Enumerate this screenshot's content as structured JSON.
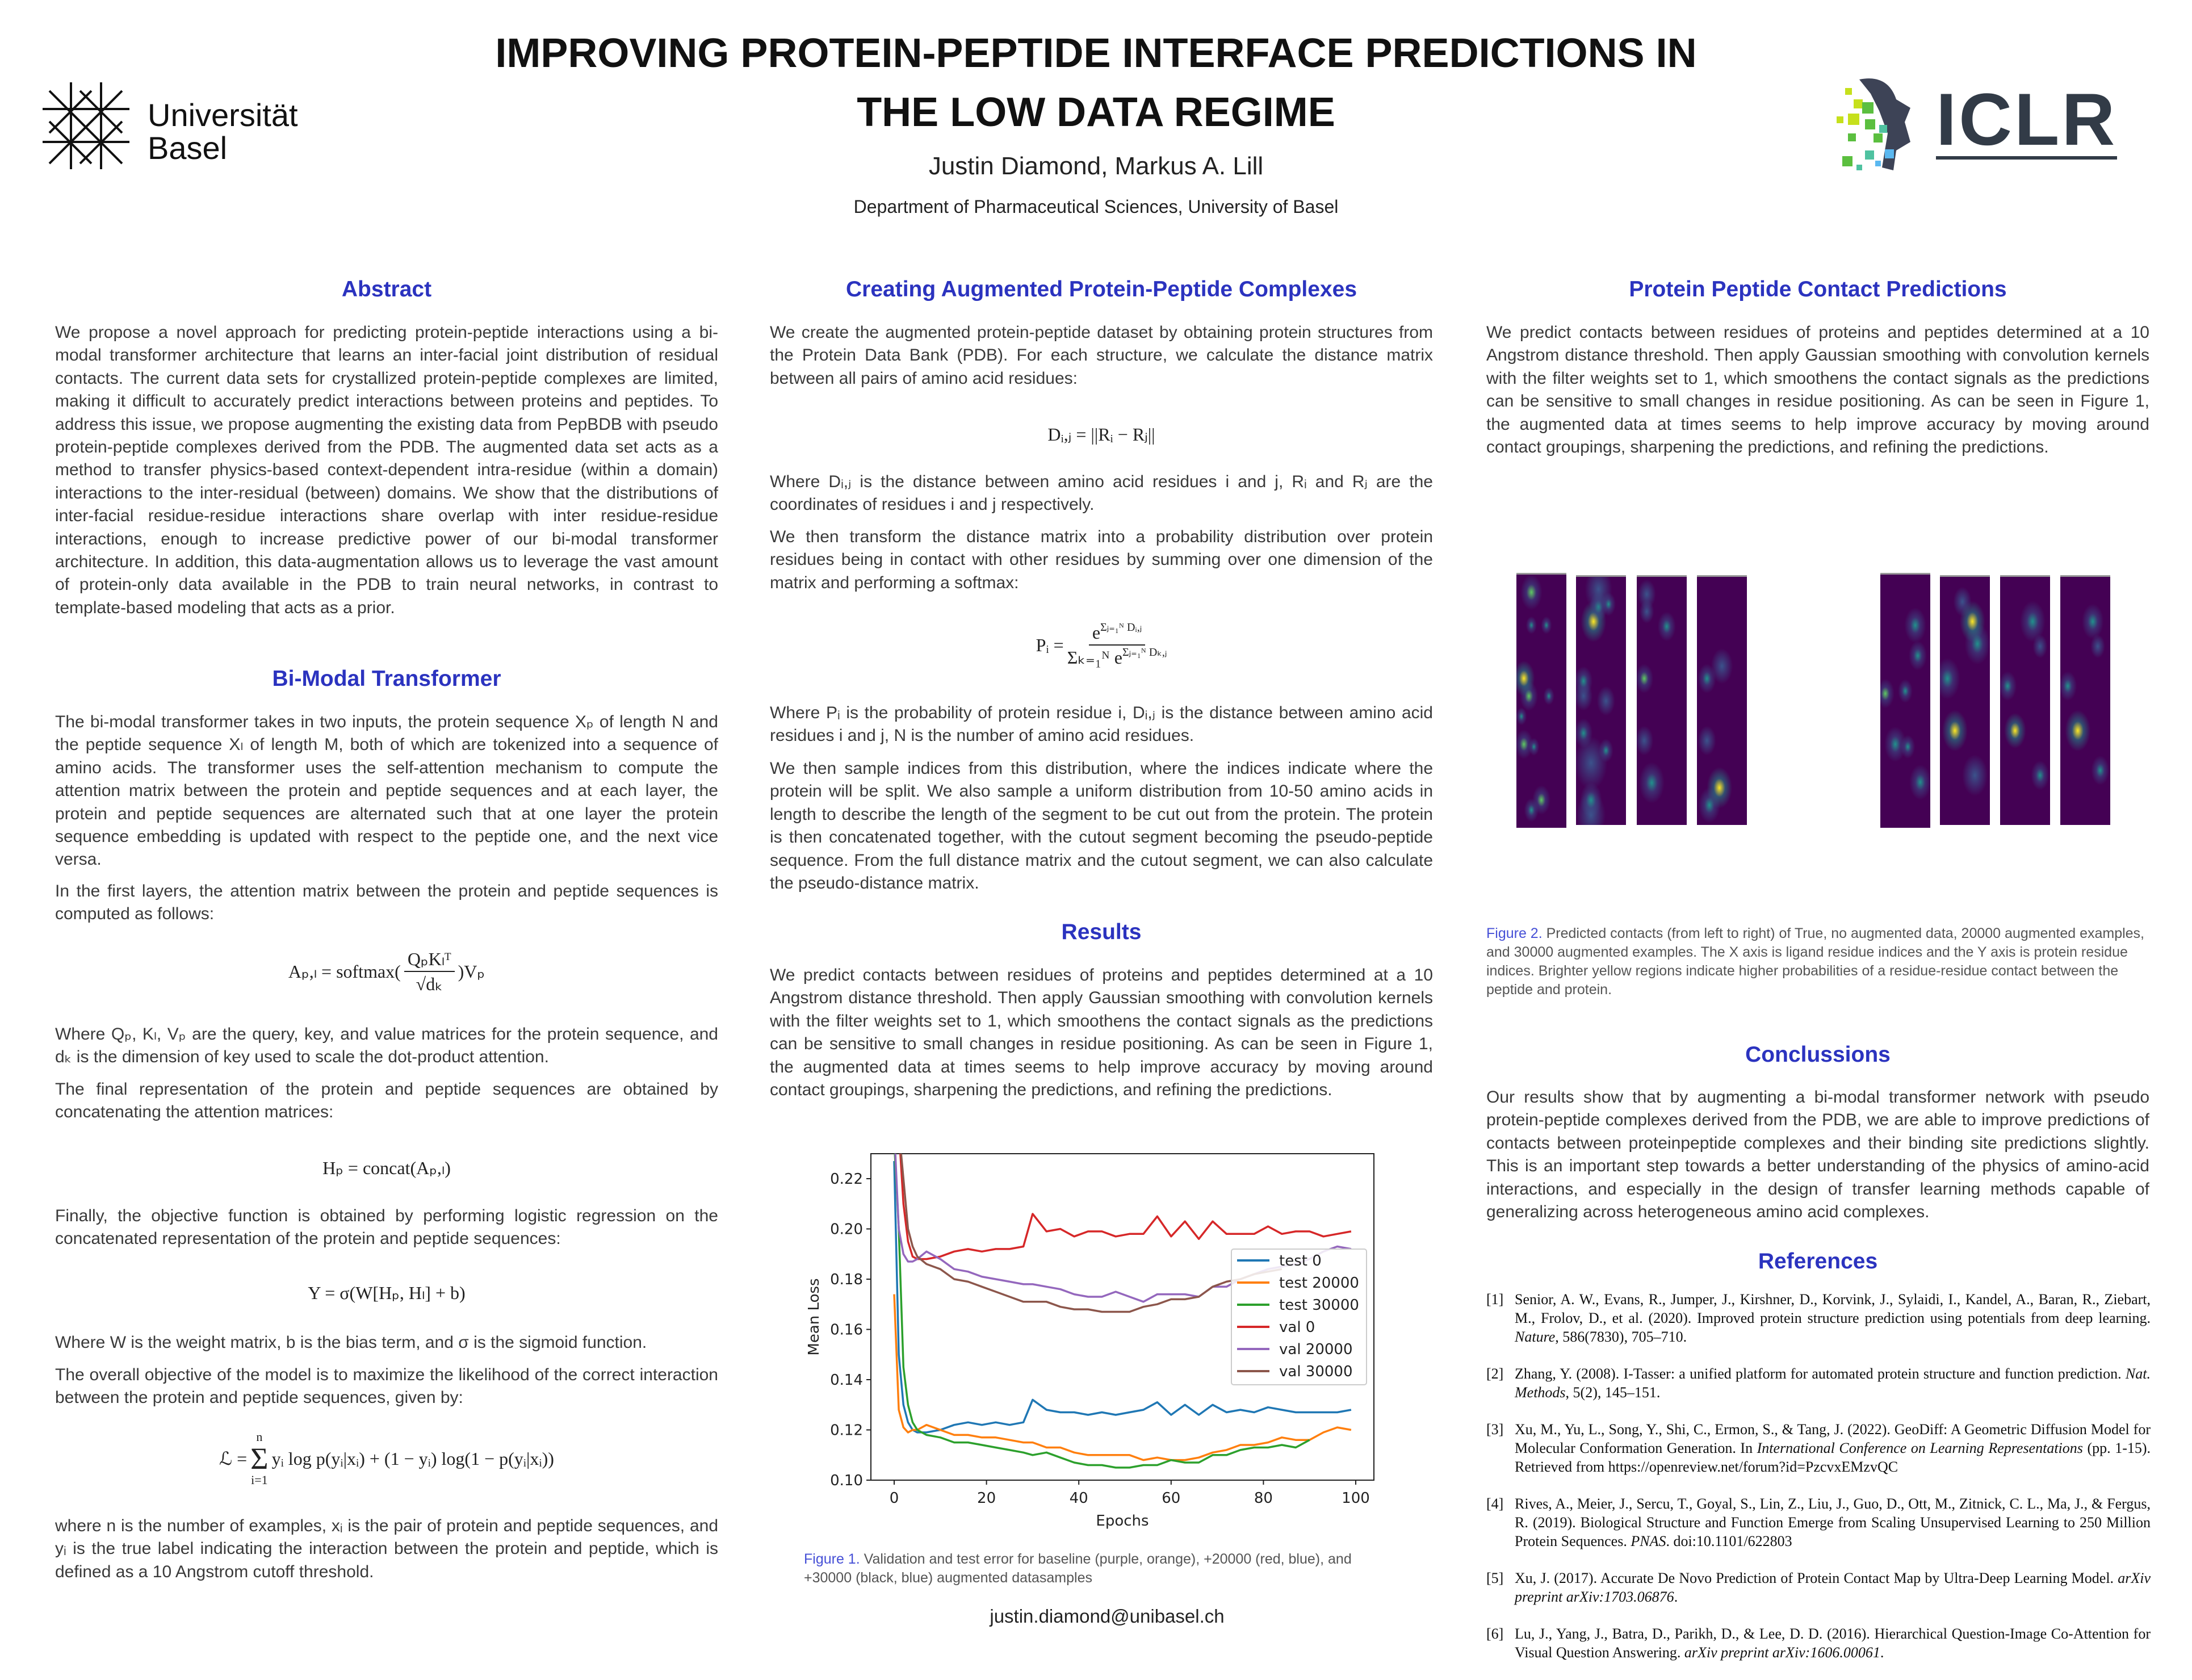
{
  "header": {
    "title_line1": "IMPROVING PROTEIN-PEPTIDE INTERFACE PREDICTIONS IN",
    "title_line2": "THE LOW DATA REGIME",
    "authors": "Justin Diamond, Markus A. Lill",
    "affiliation": "Department of Pharmaceutical Sciences, University of Basel",
    "logo_left": "Universität Basel",
    "logo_right": "ICLR"
  },
  "abstract": {
    "heading": "Abstract",
    "text": "We propose a novel approach for predicting protein-peptide interactions using a bi-modal transformer architecture that learns an inter-facial joint distribution of residual contacts. The current data sets for crystallized protein-peptide complexes are limited, making it difficult to accurately predict interactions between proteins and peptides. To address this issue, we propose augmenting the existing data from PepBDB with pseudo protein-peptide complexes derived from the PDB. The augmented data set acts as a method to transfer physics-based context-dependent intra-residue (within a domain) interactions to the inter-residual (between) domains. We show that the distributions of inter-facial residue-residue interactions share overlap with inter residue-residue interactions, enough to increase predictive power of our bi-modal transformer architecture. In addition, this data-augmentation allows us to leverage the vast amount of protein-only data available in the PDB to train neural networks, in contrast to template-based modeling that acts as a prior."
  },
  "bimodal": {
    "heading": "Bi-Modal Transformer",
    "p1": "The bi-modal transformer takes in two inputs, the protein sequence Xₚ of length N and the peptide sequence Xₗ of length M, both of which are tokenized into a sequence of amino acids. The transformer uses the self-attention mechanism to compute the attention matrix between the protein and peptide sequences and at each layer, the protein and peptide sequences are alternated such that at one layer the protein sequence embedding is updated with respect to the peptide one, and the next vice versa.",
    "p2": "In the first layers, the attention matrix between the protein and peptide sequences is computed as follows:",
    "eq_attention": {
      "lhs": "Aₚ,ₗ = softmax(",
      "num": "QₚKₗᵀ",
      "den": "√dₖ",
      "rhs": ")Vₚ"
    },
    "p3": "Where Qₚ, Kₗ, Vₚ are the query, key, and value matrices for the protein sequence, and dₖ is the dimension of key used to scale the dot-product attention.",
    "p4": "The final representation of the protein and peptide sequences are obtained by concatenating the attention matrices:",
    "eq_concat": "Hₚ = concat(Aₚ,ₗ)",
    "p5": "Finally, the objective function is obtained by performing logistic regression on the concatenated representation of the protein and peptide sequences:",
    "eq_objective": "Y = σ(W[Hₚ, Hₗ] + b)",
    "p6": "Where W is the weight matrix, b is the bias term, and σ is the sigmoid function.",
    "p7": "The overall objective of the model is to maximize the likelihood of the correct interaction between the protein and peptide sequences, given by:",
    "eq_loss": {
      "lhs": "ℒ =",
      "sum_top": "n",
      "sum": "Σ",
      "sum_bot": "i=1",
      "rhs": "yᵢ log p(yᵢ|xᵢ) + (1 − yᵢ) log(1 − p(yᵢ|xᵢ))"
    },
    "p8": "where n is the number of examples, xᵢ is the pair of protein and peptide sequences, and yᵢ is the true label indicating the interaction between the protein and peptide, which is defined as a 10 Angstrom cutoff threshold."
  },
  "augmented": {
    "heading": "Creating Augmented Protein-Peptide Complexes",
    "p1": "We create the augmented protein-peptide dataset by obtaining protein structures from the Protein Data Bank (PDB). For each structure, we calculate the distance matrix between all pairs of amino acid residues:",
    "eq_distance": "Dᵢ,ⱼ = ||Rᵢ − Rⱼ||",
    "p2": "Where Dᵢ,ⱼ is the distance between amino acid residues i and j, Rᵢ and Rⱼ are the coordinates of residues i and j respectively.",
    "p3": "We then transform the distance matrix into a probability distribution over protein residues being in contact with other residues by summing over one dimension of the matrix and performing a softmax:",
    "eq_prob": {
      "lhs": "Pᵢ =",
      "num_base": "e",
      "num_exp": "Σⱼ₌₁ᴺ Dᵢ,ⱼ",
      "den_base": "Σₖ₌₁ᴺ e",
      "den_exp": "Σⱼ₌₁ᴺ Dₖ,ⱼ"
    },
    "p4": "Where Pᵢ is the probability of protein residue i, Dᵢ,ⱼ is the distance between amino acid residues i and j, N is the number of amino acid residues.",
    "p5": "We then sample indices from this distribution, where the indices indicate where the protein will be split. We also sample a uniform distribution from 10-50 amino acids in length to describe the length of the segment to be cut out from the protein. The protein is then concatenated together, with the cutout segment becoming the pseudo-peptide sequence. From the full distance matrix and the cutout segment, we can also calculate the pseudo-distance matrix."
  },
  "results": {
    "heading": "Results",
    "text": "We predict contacts between residues of proteins and peptides determined at a 10 Angstrom distance threshold. Then apply Gaussian smoothing with convolution kernels with the filter weights set to 1, which smoothens the contact signals as the predictions can be sensitive to small changes in residue positioning. As can be seen in Figure 1, the augmented data at times seems to help improve accuracy by moving around contact groupings, sharpening the predictions, and refining the predictions.",
    "figure_label": "Figure 1.",
    "caption": "Validation and test error for baseline (purple, orange), +20000 (red, blue), and +30000 (black, blue) augmented datasamples",
    "email": "justin.diamond@unibasel.ch"
  },
  "chart_data": {
    "type": "line",
    "xlabel": "Epochs",
    "ylabel": "Mean Loss",
    "xlim": [
      -3,
      104
    ],
    "ylim": [
      0.1,
      0.2305
    ],
    "xticks": [
      0,
      20,
      40,
      60,
      80,
      100
    ],
    "yticks": [
      "0.10",
      "0.12",
      "0.14",
      "0.16",
      "0.18",
      "0.20",
      "0.22"
    ],
    "grid": false,
    "legend": "right",
    "x": [
      0,
      1,
      2,
      3,
      4,
      5,
      7,
      10,
      13,
      16,
      19,
      22,
      25,
      28,
      30,
      33,
      36,
      39,
      42,
      45,
      48,
      51,
      54,
      57,
      60,
      63,
      66,
      69,
      72,
      75,
      78,
      81,
      84,
      87,
      90,
      93,
      96,
      99
    ],
    "series": [
      {
        "name": "test 0",
        "color": "#1f77b4",
        "values": [
          0.227,
          0.15,
          0.13,
          0.123,
          0.12,
          0.119,
          0.119,
          0.12,
          0.122,
          0.123,
          0.122,
          0.123,
          0.122,
          0.123,
          0.132,
          0.128,
          0.127,
          0.127,
          0.126,
          0.127,
          0.126,
          0.127,
          0.128,
          0.131,
          0.126,
          0.13,
          0.126,
          0.13,
          0.127,
          0.128,
          0.127,
          0.129,
          0.128,
          0.127,
          0.127,
          0.127,
          0.127,
          0.128
        ]
      },
      {
        "name": "test 20000",
        "color": "#ff7f0e",
        "values": [
          0.174,
          0.128,
          0.121,
          0.119,
          0.12,
          0.12,
          0.122,
          0.12,
          0.118,
          0.118,
          0.117,
          0.117,
          0.116,
          0.115,
          0.115,
          0.113,
          0.113,
          0.111,
          0.11,
          0.11,
          0.11,
          0.11,
          0.108,
          0.109,
          0.108,
          0.108,
          0.109,
          0.111,
          0.112,
          0.114,
          0.114,
          0.115,
          0.117,
          0.116,
          0.116,
          0.119,
          0.121,
          0.12
        ]
      },
      {
        "name": "test 30000",
        "color": "#2ca02c",
        "values": [
          0.235,
          0.2,
          0.145,
          0.13,
          0.123,
          0.12,
          0.118,
          0.117,
          0.115,
          0.115,
          0.114,
          0.113,
          0.112,
          0.111,
          0.11,
          0.111,
          0.109,
          0.107,
          0.106,
          0.106,
          0.105,
          0.105,
          0.106,
          0.106,
          0.108,
          0.107,
          0.107,
          0.11,
          0.11,
          0.112,
          0.113,
          0.113,
          0.114,
          0.113,
          0.116,
          null,
          null,
          null
        ]
      },
      {
        "name": "val 0",
        "color": "#d62728",
        "values": [
          0.24,
          0.24,
          0.21,
          0.195,
          0.189,
          0.188,
          0.188,
          0.189,
          0.191,
          0.192,
          0.191,
          0.192,
          0.192,
          0.193,
          0.206,
          0.199,
          0.2,
          0.197,
          0.199,
          0.199,
          0.197,
          0.198,
          0.198,
          0.205,
          0.197,
          0.203,
          0.196,
          0.203,
          0.198,
          0.198,
          0.198,
          0.201,
          0.198,
          0.199,
          0.199,
          0.197,
          0.198,
          0.199
        ]
      },
      {
        "name": "val 20000",
        "color": "#9467bd",
        "values": [
          0.24,
          0.2,
          0.19,
          0.187,
          0.187,
          0.188,
          0.191,
          0.188,
          0.184,
          0.183,
          0.181,
          0.18,
          0.179,
          0.178,
          0.178,
          0.177,
          0.176,
          0.174,
          0.173,
          0.173,
          0.175,
          0.173,
          0.171,
          0.174,
          0.174,
          0.174,
          0.173,
          0.177,
          0.177,
          0.18,
          0.182,
          0.184,
          0.185,
          0.186,
          0.188,
          0.191,
          0.193,
          0.192
        ]
      },
      {
        "name": "val 30000",
        "color": "#8c564b",
        "values": [
          0.24,
          0.24,
          0.22,
          0.2,
          0.193,
          0.189,
          0.186,
          0.184,
          0.18,
          0.179,
          0.177,
          0.175,
          0.173,
          0.171,
          0.171,
          0.171,
          0.169,
          0.168,
          0.168,
          0.167,
          0.167,
          0.167,
          0.169,
          0.17,
          0.172,
          0.172,
          0.173,
          0.177,
          0.179,
          0.18,
          0.182,
          0.183,
          0.184,
          null,
          null,
          null,
          null,
          null
        ]
      }
    ]
  },
  "contacts": {
    "heading": "Protein Peptide Contact Predictions",
    "text": "We predict contacts between residues of proteins and peptides determined at a 10 Angstrom distance threshold. Then apply Gaussian smoothing with convolution kernels with the filter weights set to 1, which smoothens the contact signals as the predictions can be sensitive to small changes in residue positioning. As can be seen in Figure 1, the augmented data at times seems to help improve accuracy by moving around contact groupings, sharpening the predictions, and refining the predictions.",
    "figure_label": "Figure 2.",
    "caption": "Predicted contacts (from left to right) of True, no augmented data, 20000 augmented examples, and 30000 augmented examples. The X axis is ligand residue indices and the Y axis is protein residue indices. Brighter yellow regions indicate higher probabilities of a residue-residue contact between the peptide and protein.",
    "colormap": [
      "#440154",
      "#3b528b",
      "#21918c",
      "#5ec962",
      "#fde725"
    ]
  },
  "conclusions": {
    "heading": "Conclussions",
    "text": "Our results show that by augmenting a bi-modal transformer network with pseudo protein-peptide complexes derived from the PDB, we are able to improve predictions of contacts between proteinpeptide complexes and their binding site predictions slightly. This is an important step towards a better understanding of the physics of amino-acid interactions, and especially in the design of transfer learning methods capable of generalizing across heterogeneous amino acid complexes."
  },
  "references": {
    "heading": "References",
    "items": [
      {
        "num": "[1]",
        "text": "Senior, A. W., Evans, R., Jumper, J., Kirshner, D., Korvink, J., Sylaidi, I., Kandel, A., Baran, R., Ziebart, M., Frolov, D., et al. (2020). Improved protein structure prediction using potentials from deep learning. ",
        "venue": "Nature",
        "tail": ", 586(7830), 705–710."
      },
      {
        "num": "[2]",
        "text": "Zhang, Y. (2008). I-Tasser: a unified platform for automated protein structure and function prediction. ",
        "venue": "Nat. Methods",
        "tail": ", 5(2), 145–151."
      },
      {
        "num": "[3]",
        "text": "Xu, M., Yu, L., Song, Y., Shi, C., Ermon, S., & Tang, J. (2022). GeoDiff: A Geometric Diffusion Model for Molecular Conformation Generation. In ",
        "venue": "International Conference on Learning Representations",
        "tail": " (pp. 1-15). Retrieved from https://openreview.net/forum?id=PzcvxEMzvQC"
      },
      {
        "num": "[4]",
        "text": "Rives, A., Meier, J., Sercu, T., Goyal, S., Lin, Z., Liu, J., Guo, D., Ott, M., Zitnick, C. L., Ma, J., & Fergus, R. (2019). Biological Structure and Function Emerge from Scaling Unsupervised Learning to 250 Million Protein Sequences. ",
        "venue": "PNAS",
        "tail": ". doi:10.1101/622803"
      },
      {
        "num": "[5]",
        "text": "Xu, J. (2017). Accurate De Novo Prediction of Protein Contact Map by Ultra-Deep Learning Model. ",
        "venue": "arXiv preprint arXiv:1703.06876",
        "tail": "."
      },
      {
        "num": "[6]",
        "text": "Lu, J., Yang, J., Batra, D., Parikh, D., & Lee, D. D. (2016). Hierarchical Question-Image Co-Attention for Visual Question Answering. ",
        "venue": "arXiv preprint arXiv:1606.00061",
        "tail": "."
      }
    ]
  }
}
